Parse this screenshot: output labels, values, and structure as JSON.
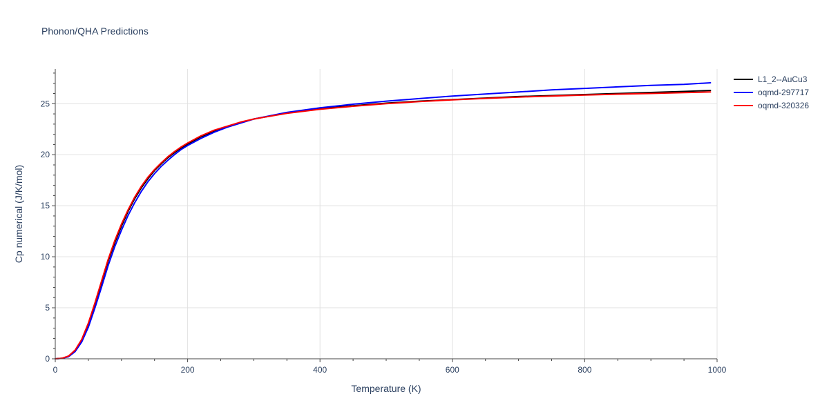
{
  "chart_data": {
    "type": "line",
    "title": "Phonon/QHA Predictions",
    "xlabel": "Temperature (K)",
    "ylabel": "Cp numerical (J/K/mol)",
    "xlim": [
      0,
      1000
    ],
    "ylim": [
      0,
      28.4
    ],
    "xticks": [
      0,
      200,
      400,
      600,
      800,
      1000
    ],
    "yticks": [
      0,
      5,
      10,
      15,
      20,
      25
    ],
    "grid": true,
    "legend_position": "top-right",
    "series": [
      {
        "name": "L1_2--AuCu3",
        "color": "#000000",
        "x": [
          0,
          10,
          20,
          30,
          40,
          50,
          60,
          70,
          80,
          90,
          100,
          110,
          120,
          130,
          140,
          150,
          160,
          170,
          180,
          190,
          200,
          220,
          240,
          260,
          280,
          300,
          350,
          400,
          450,
          500,
          550,
          600,
          650,
          700,
          750,
          800,
          850,
          900,
          950,
          990
        ],
        "y": [
          0,
          0.05,
          0.25,
          0.8,
          1.85,
          3.4,
          5.4,
          7.5,
          9.6,
          11.4,
          13.0,
          14.45,
          15.7,
          16.75,
          17.65,
          18.45,
          19.1,
          19.7,
          20.2,
          20.65,
          21.05,
          21.75,
          22.3,
          22.75,
          23.15,
          23.5,
          24.1,
          24.5,
          24.8,
          25.05,
          25.25,
          25.4,
          25.55,
          25.7,
          25.8,
          25.9,
          26.0,
          26.1,
          26.2,
          26.3
        ]
      },
      {
        "name": "oqmd-297717",
        "color": "#0000ff",
        "x": [
          0,
          10,
          20,
          30,
          40,
          50,
          60,
          70,
          80,
          90,
          100,
          110,
          120,
          130,
          140,
          150,
          160,
          170,
          180,
          190,
          200,
          220,
          240,
          260,
          280,
          300,
          350,
          400,
          450,
          500,
          550,
          600,
          650,
          700,
          750,
          800,
          850,
          900,
          950,
          990
        ],
        "y": [
          0,
          0.04,
          0.2,
          0.7,
          1.65,
          3.1,
          5.0,
          7.05,
          9.15,
          11.0,
          12.6,
          14.05,
          15.3,
          16.4,
          17.35,
          18.15,
          18.85,
          19.45,
          20.0,
          20.5,
          20.9,
          21.6,
          22.2,
          22.7,
          23.1,
          23.5,
          24.15,
          24.6,
          24.95,
          25.25,
          25.5,
          25.75,
          25.95,
          26.15,
          26.35,
          26.5,
          26.65,
          26.8,
          26.9,
          27.05
        ]
      },
      {
        "name": "oqmd-320326",
        "color": "#ff0000",
        "x": [
          0,
          10,
          20,
          30,
          40,
          50,
          60,
          70,
          80,
          90,
          100,
          110,
          120,
          130,
          140,
          150,
          160,
          170,
          180,
          190,
          200,
          220,
          240,
          260,
          280,
          300,
          350,
          400,
          450,
          500,
          550,
          600,
          650,
          700,
          750,
          800,
          850,
          900,
          950,
          990
        ],
        "y": [
          0,
          0.05,
          0.27,
          0.85,
          1.9,
          3.5,
          5.5,
          7.65,
          9.75,
          11.6,
          13.2,
          14.6,
          15.85,
          16.9,
          17.8,
          18.55,
          19.2,
          19.8,
          20.3,
          20.75,
          21.15,
          21.85,
          22.4,
          22.8,
          23.2,
          23.5,
          24.05,
          24.45,
          24.75,
          25.0,
          25.2,
          25.38,
          25.52,
          25.65,
          25.75,
          25.85,
          25.93,
          26.0,
          26.08,
          26.15
        ]
      }
    ]
  }
}
